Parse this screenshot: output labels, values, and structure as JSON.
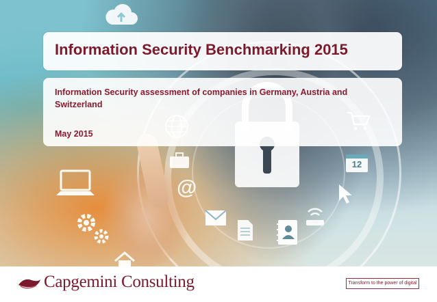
{
  "slide": {
    "title": "Information Security Benchmarking 2015",
    "subtitle": "Information Security assessment of companies in Germany, Austria and Switzerland",
    "date": "May 2015"
  },
  "footer": {
    "logo_text": "Capgemini Consulting",
    "tagline": "Transform to the power of digital"
  },
  "background_icons": [
    "cloud-icon",
    "globe-icon",
    "shopping-cart-icon",
    "calendar-icon",
    "briefcase-icon",
    "at-sign-icon",
    "laptop-icon",
    "cursor-icon",
    "gears-icon",
    "envelope-icon",
    "document-icon",
    "contacts-book-icon",
    "wifi-router-icon",
    "home-icon",
    "padlock-icon"
  ],
  "calendar_day": "12",
  "colors": {
    "title": "#7c1a2c",
    "accent": "#8b1a30",
    "brand": "#7a1a2c"
  }
}
